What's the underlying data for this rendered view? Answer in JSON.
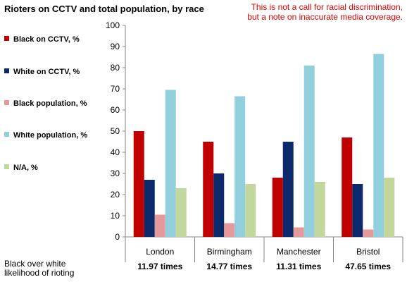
{
  "title": "Rioters on CCTV and total population, by race",
  "note": {
    "line1": "This is not a call for racial discrimination,",
    "line2": "but a note on inaccurate media coverage."
  },
  "ratio_label": {
    "line1": "Black over white",
    "line2": "likelihood of rioting"
  },
  "ratios": [
    "11.97 times",
    "14.77 times",
    "11.31 times",
    "47.65 times"
  ],
  "chart_data": {
    "type": "bar",
    "title": "Rioters on CCTV and total population, by race",
    "categories": [
      "London",
      "Birmingham",
      "Manchester",
      "Bristol"
    ],
    "series": [
      {
        "name": "Black on CCTV, %",
        "color": "#c00000",
        "values": [
          50,
          45,
          28,
          47
        ]
      },
      {
        "name": "White on CCTV, %",
        "color": "#0c2a6b",
        "values": [
          27,
          30,
          45,
          25
        ]
      },
      {
        "name": "Black population, %",
        "color": "#e6999a",
        "values": [
          10.5,
          6.5,
          4.5,
          3.5
        ]
      },
      {
        "name": "White population, %",
        "color": "#92cfdd",
        "values": [
          69.5,
          66.5,
          81,
          86.5
        ]
      },
      {
        "name": "N/A, %",
        "color": "#c3d69b",
        "values": [
          23,
          25,
          26,
          28
        ]
      }
    ],
    "ylim": [
      0,
      100
    ],
    "yticks": [
      0,
      10,
      20,
      30,
      40,
      50,
      60,
      70,
      80,
      90,
      100
    ],
    "grid": false,
    "legend_position": "left"
  }
}
